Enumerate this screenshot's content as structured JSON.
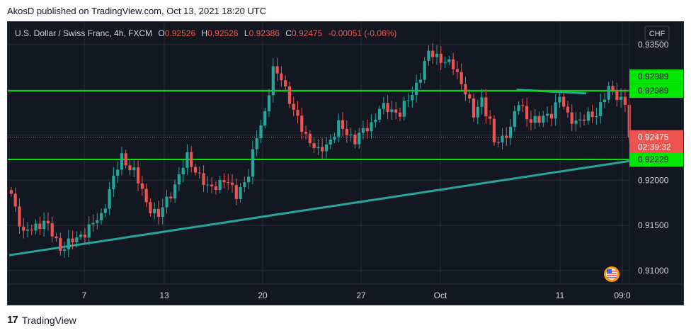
{
  "header": {
    "published": "AkosD published on TradingView.com, Oct 13, 2021 18:20 UTC"
  },
  "legend": {
    "symbol": "U.S. Dollar / Swiss Franc, 4h, FXCM",
    "o_label": "O",
    "o_value": "0.92526",
    "h_label": "H",
    "h_value": "0.92526",
    "l_label": "L",
    "l_value": "0.92386",
    "c_label": "C",
    "c_value": "0.92475",
    "change": "-0.00051 (-0.06%)"
  },
  "currency_button": "CHF",
  "footer": {
    "brand_mark": "17",
    "brand_name": "TradingView"
  },
  "colors": {
    "up": "#26a69a",
    "down": "#ef5350",
    "level": "#00e600",
    "trend": "#26a69a",
    "grid": "#2a2e39",
    "bg": "#131722",
    "axis_text": "#d1d4dc"
  },
  "chart_data": {
    "type": "candlestick",
    "title": "U.S. Dollar / Swiss Franc, 4h, FXCM",
    "ylim": [
      0.9085,
      0.9375
    ],
    "y_ticks": [
      "0.91000",
      "0.91500",
      "0.92000",
      "0.92500",
      "0.93000",
      "0.93500"
    ],
    "x_tick_labels": [
      "7",
      "13",
      "20",
      "27",
      "Oct",
      "11",
      "09:0"
    ],
    "horizontal_levels": [
      {
        "name": "resistance",
        "value": 0.92989,
        "label": "0.92989"
      },
      {
        "name": "support",
        "value": 0.92229,
        "label": "0.92229"
      }
    ],
    "last_price": {
      "value": 0.92475,
      "label": "0.92475",
      "countdown": "02:39:32"
    },
    "trendlines": [
      {
        "name": "ascending-support",
        "from": [
          0,
          0.9117
        ],
        "to": [
          160,
          0.9227
        ]
      },
      {
        "name": "short-resistance",
        "from": [
          124,
          0.93
        ],
        "to": [
          141,
          0.9296
        ]
      }
    ],
    "anchors": [
      [
        0,
        0.9185
      ],
      [
        3,
        0.914
      ],
      [
        8,
        0.9155
      ],
      [
        12,
        0.9125
      ],
      [
        16,
        0.9135
      ],
      [
        22,
        0.916
      ],
      [
        24,
        0.919
      ],
      [
        27,
        0.9225
      ],
      [
        30,
        0.921
      ],
      [
        33,
        0.9175
      ],
      [
        36,
        0.916
      ],
      [
        40,
        0.9195
      ],
      [
        43,
        0.9225
      ],
      [
        46,
        0.9205
      ],
      [
        48,
        0.919
      ],
      [
        52,
        0.92
      ],
      [
        55,
        0.9185
      ],
      [
        58,
        0.9205
      ],
      [
        60,
        0.925
      ],
      [
        62,
        0.9275
      ],
      [
        64,
        0.932
      ],
      [
        66,
        0.9315
      ],
      [
        69,
        0.9275
      ],
      [
        72,
        0.925
      ],
      [
        75,
        0.923
      ],
      [
        78,
        0.9245
      ],
      [
        80,
        0.926
      ],
      [
        84,
        0.9245
      ],
      [
        88,
        0.9262
      ],
      [
        90,
        0.928
      ],
      [
        95,
        0.9275
      ],
      [
        98,
        0.9295
      ],
      [
        102,
        0.934
      ],
      [
        105,
        0.9335
      ],
      [
        108,
        0.9325
      ],
      [
        111,
        0.93
      ],
      [
        113,
        0.927
      ],
      [
        115,
        0.929
      ],
      [
        117,
        0.9265
      ],
      [
        118,
        0.924
      ],
      [
        120,
        0.9245
      ],
      [
        122,
        0.926
      ],
      [
        124,
        0.9285
      ],
      [
        126,
        0.927
      ],
      [
        129,
        0.9265
      ],
      [
        132,
        0.9275
      ],
      [
        134,
        0.9292
      ],
      [
        136,
        0.927
      ],
      [
        139,
        0.9265
      ],
      [
        143,
        0.9275
      ],
      [
        146,
        0.93
      ],
      [
        148,
        0.9295
      ],
      [
        150,
        0.9285
      ],
      [
        151,
        0.92475
      ]
    ]
  }
}
